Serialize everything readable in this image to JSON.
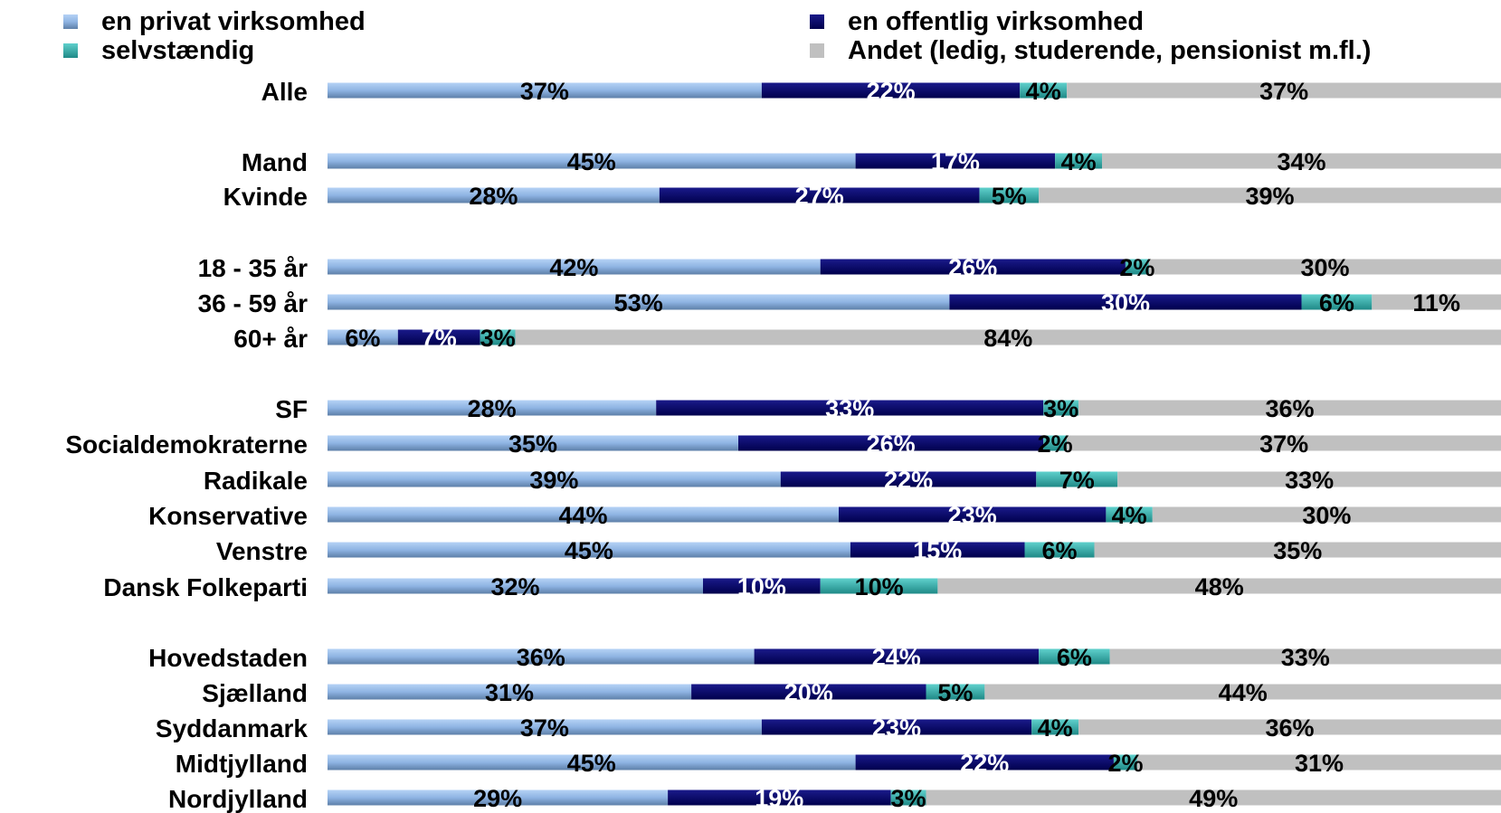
{
  "chart_data": {
    "type": "bar",
    "orientation": "horizontal",
    "stacked": true,
    "normalized_percent": true,
    "title": "",
    "xlabel": "",
    "ylabel": "",
    "grid": false,
    "legend_position": "top",
    "series": [
      {
        "name": "en privat virksomhed",
        "color": "#8fb4e3",
        "label_color": "#000000",
        "values": [
          37,
          45,
          28,
          42,
          53,
          6,
          28,
          35,
          39,
          44,
          45,
          32,
          36,
          31,
          37,
          45,
          29
        ]
      },
      {
        "name": "en offentlig virksomhed",
        "color": "#000066",
        "label_color": "#ffffff",
        "values": [
          22,
          17,
          27,
          26,
          30,
          7,
          33,
          26,
          22,
          23,
          15,
          10,
          24,
          20,
          23,
          22,
          19
        ]
      },
      {
        "name": "selvstændig",
        "color": "#33b3b0",
        "label_color": "#000000",
        "values": [
          4,
          4,
          5,
          2,
          6,
          3,
          3,
          2,
          7,
          4,
          6,
          10,
          6,
          5,
          4,
          2,
          3
        ]
      },
      {
        "name": "Andet (ledig, studerende, pensionist m.fl.)",
        "color": "#c0c0c0",
        "label_color": "#000000",
        "values": [
          37,
          34,
          39,
          30,
          11,
          84,
          36,
          37,
          33,
          30,
          35,
          48,
          33,
          44,
          36,
          31,
          49
        ]
      }
    ],
    "categories": [
      "Alle",
      "Mand",
      "Kvinde",
      "18 - 35 år",
      "36 - 59 år",
      "60+ år",
      "SF",
      "Socialdemokraterne",
      "Radikale",
      "Konservative",
      "Venstre",
      "Dansk Folkeparti",
      "Hovedstaden",
      "Sjælland",
      "Syddanmark",
      "Midtjylland",
      "Nordjylland"
    ],
    "value_suffix": "%"
  }
}
